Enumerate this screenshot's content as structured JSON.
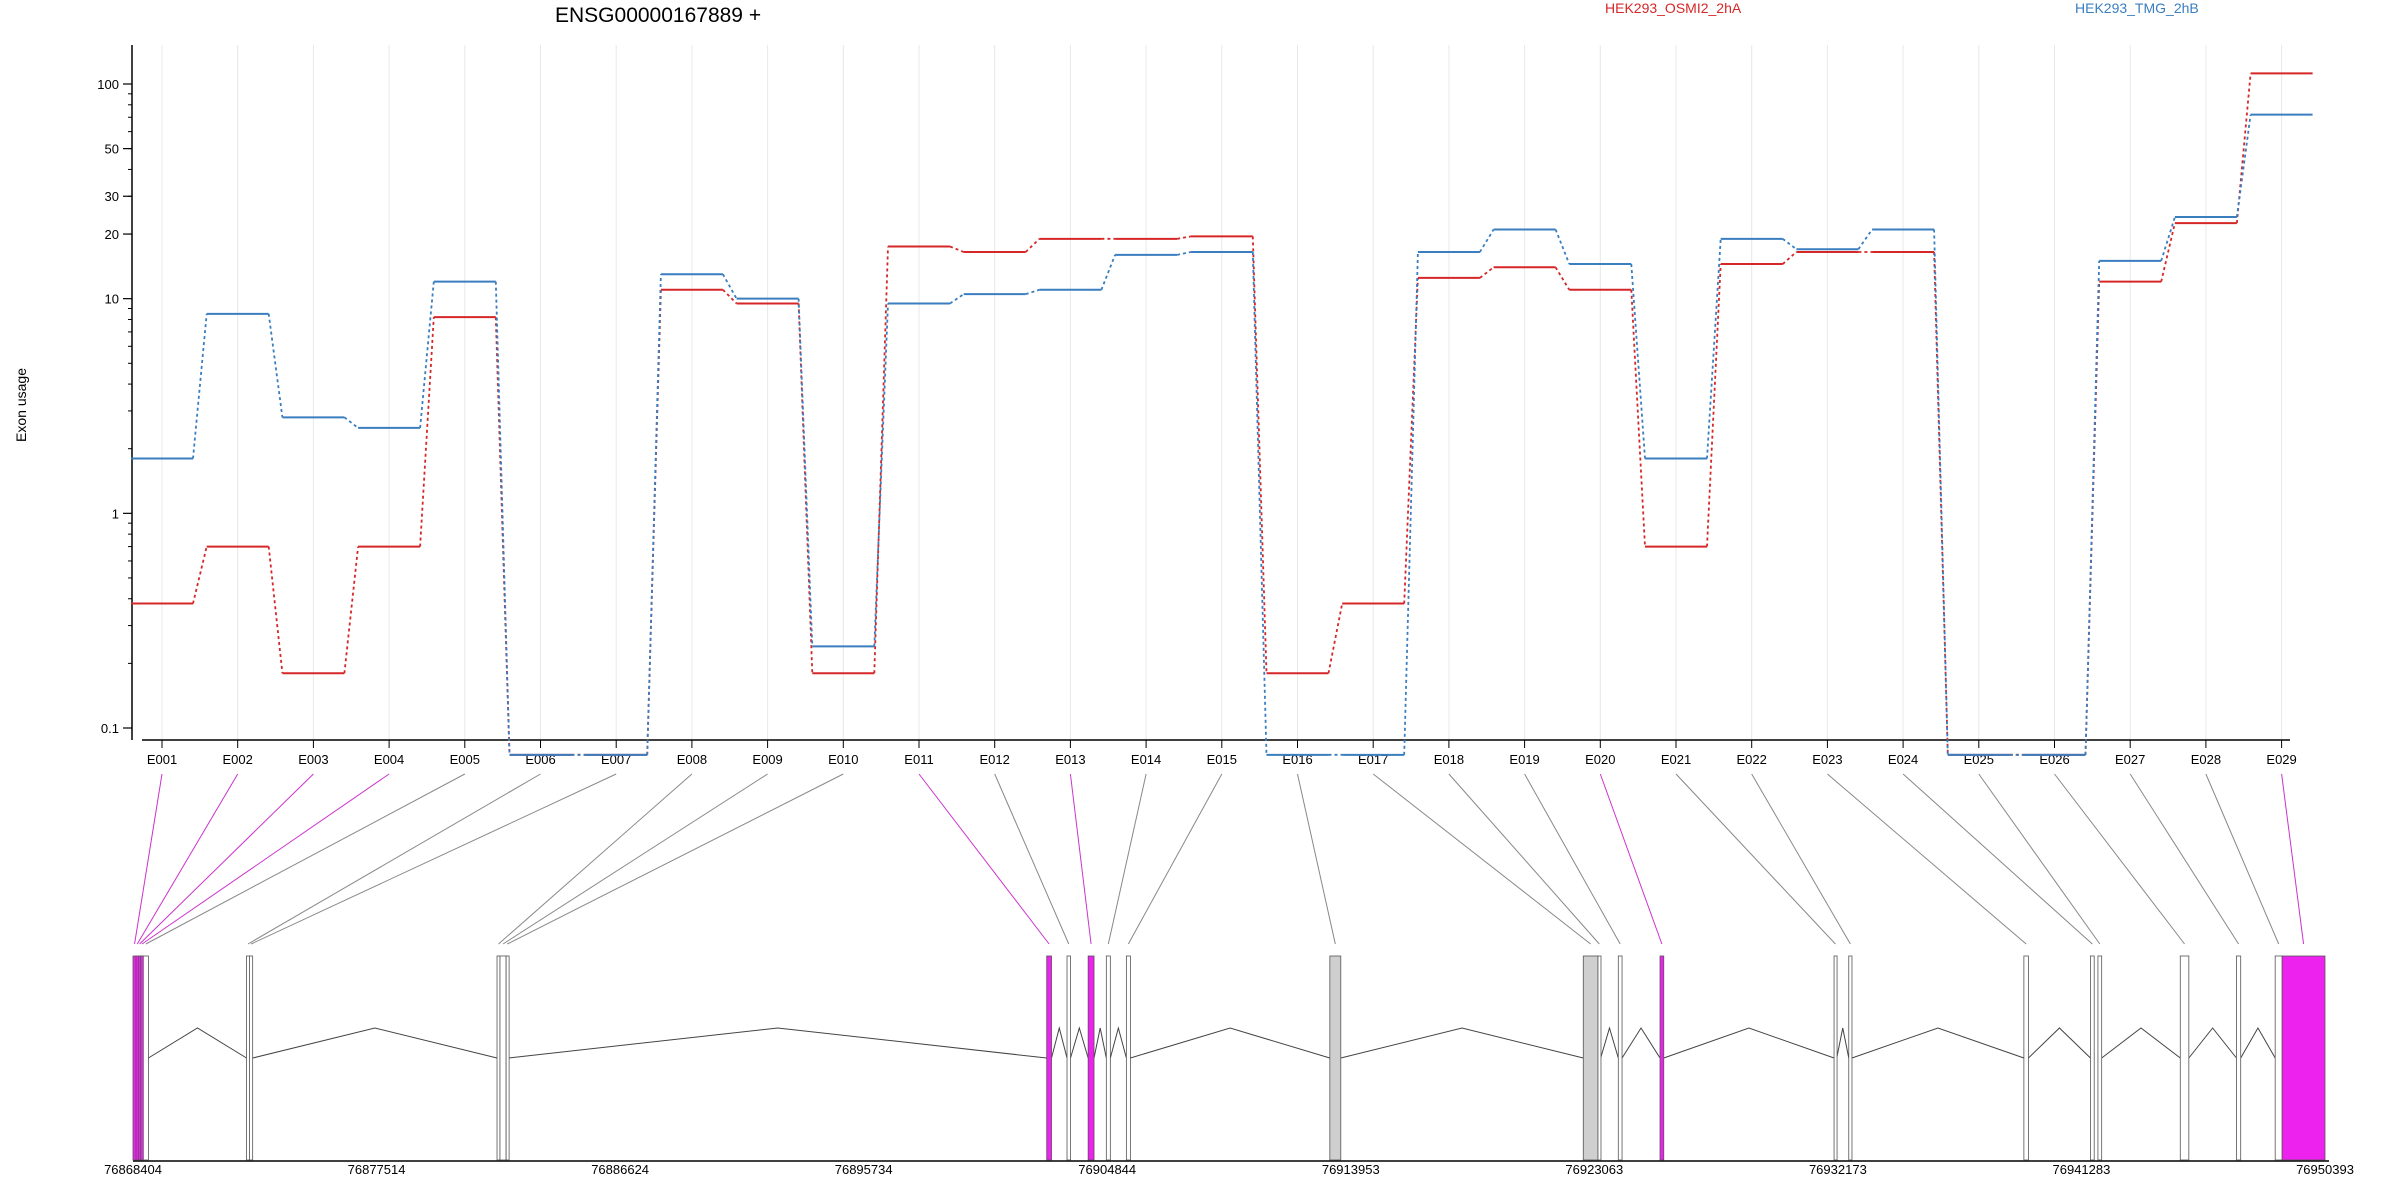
{
  "chart_data": {
    "type": "line",
    "title": "ENSG00000167889 +",
    "ylabel": "Exon usage",
    "y_scale": "log",
    "ylim": [
      0.07,
      130
    ],
    "y_ticks": [
      "0.1",
      "1",
      "10",
      "20",
      "30",
      "50",
      "100"
    ],
    "grid": "vertical lines at each exon",
    "legend_position": "top, above plot",
    "categories": [
      "E001",
      "E002",
      "E003",
      "E004",
      "E005",
      "E006",
      "E007",
      "E008",
      "E009",
      "E010",
      "E011",
      "E012",
      "E013",
      "E014",
      "E015",
      "E016",
      "E017",
      "E018",
      "E019",
      "E020",
      "E021",
      "E022",
      "E023",
      "E024",
      "E025",
      "E026",
      "E027",
      "E028",
      "E029"
    ],
    "series": [
      {
        "name": "HEK293_OSMI2_2hA",
        "color": "#d62728",
        "values": [
          0.38,
          0.7,
          0.18,
          0.7,
          8.2,
          0.075,
          0.075,
          11,
          9.5,
          0.18,
          17.5,
          16.5,
          19,
          19,
          19.5,
          0.18,
          0.38,
          12.5,
          14,
          11,
          0.7,
          14.5,
          16.5,
          16.5,
          0.075,
          0.075,
          12,
          22.5,
          112
        ]
      },
      {
        "name": "HEK293_TMG_2hB",
        "color": "#3a7ebf",
        "values": [
          1.8,
          8.5,
          2.8,
          2.5,
          12,
          0.075,
          0.075,
          13,
          10,
          0.24,
          9.5,
          10.5,
          11,
          16,
          16.5,
          0.075,
          0.075,
          16.5,
          21,
          14.5,
          1.8,
          19,
          17,
          21,
          0.075,
          0.075,
          15,
          24,
          72
        ]
      }
    ],
    "gene_model": {
      "genomic_start": 76868404,
      "genomic_end": 76950393,
      "coordinate_labels": [
        "76868404",
        "76877514",
        "76886624",
        "76895734",
        "76904844",
        "76913953",
        "76923063",
        "76932173",
        "76941283",
        "76950393"
      ],
      "highlight_color": "#ee22ee",
      "exons": [
        {
          "id": "E001",
          "start": 76868404,
          "end": 76868520,
          "highlight": true
        },
        {
          "id": "E002",
          "start": 76868520,
          "end": 76868610,
          "highlight": true
        },
        {
          "id": "E003",
          "start": 76868610,
          "end": 76868690,
          "highlight": true
        },
        {
          "id": "E004",
          "start": 76868690,
          "end": 76868790,
          "highlight": true
        },
        {
          "id": "E005",
          "start": 76868790,
          "end": 76868980,
          "highlight": false
        },
        {
          "id": "E006",
          "start": 76872650,
          "end": 76872760,
          "highlight": false
        },
        {
          "id": "E007",
          "start": 76872760,
          "end": 76872880,
          "highlight": false
        },
        {
          "id": "E008",
          "start": 76882020,
          "end": 76882130,
          "highlight": false
        },
        {
          "id": "E009",
          "start": 76882130,
          "end": 76882360,
          "highlight": false
        },
        {
          "id": "E010",
          "start": 76882360,
          "end": 76882450,
          "highlight": false
        },
        {
          "id": "E011",
          "start": 76902580,
          "end": 76902760,
          "highlight": true
        },
        {
          "id": "E012",
          "start": 76903340,
          "end": 76903470,
          "highlight": false
        },
        {
          "id": "E013",
          "start": 76904130,
          "end": 76904350,
          "highlight": true
        },
        {
          "id": "E014",
          "start": 76904810,
          "end": 76904960,
          "highlight": false
        },
        {
          "id": "E015",
          "start": 76905560,
          "end": 76905710,
          "highlight": false
        },
        {
          "id": "E016",
          "start": 76913170,
          "end": 76913580,
          "highlight": false
        },
        {
          "id": "E017",
          "start": 76922650,
          "end": 76923200,
          "highlight": false
        },
        {
          "id": "E018",
          "start": 76923200,
          "end": 76923300,
          "highlight": false
        },
        {
          "id": "E019",
          "start": 76923960,
          "end": 76924100,
          "highlight": false
        },
        {
          "id": "E020",
          "start": 76925520,
          "end": 76925660,
          "highlight": true
        },
        {
          "id": "E021",
          "start": 76932030,
          "end": 76932130,
          "highlight": false
        },
        {
          "id": "E022",
          "start": 76932580,
          "end": 76932700,
          "highlight": false
        },
        {
          "id": "E023",
          "start": 76939130,
          "end": 76939300,
          "highlight": false
        },
        {
          "id": "E024",
          "start": 76941620,
          "end": 76941760,
          "highlight": false
        },
        {
          "id": "E025",
          "start": 76941900,
          "end": 76942040,
          "highlight": false
        },
        {
          "id": "E026",
          "start": 76944980,
          "end": 76945300,
          "highlight": false
        },
        {
          "id": "E027",
          "start": 76947080,
          "end": 76947240,
          "highlight": false
        },
        {
          "id": "E028",
          "start": 76948530,
          "end": 76948790,
          "highlight": false
        },
        {
          "id": "E029",
          "start": 76948790,
          "end": 76950393,
          "highlight": true
        }
      ]
    }
  }
}
